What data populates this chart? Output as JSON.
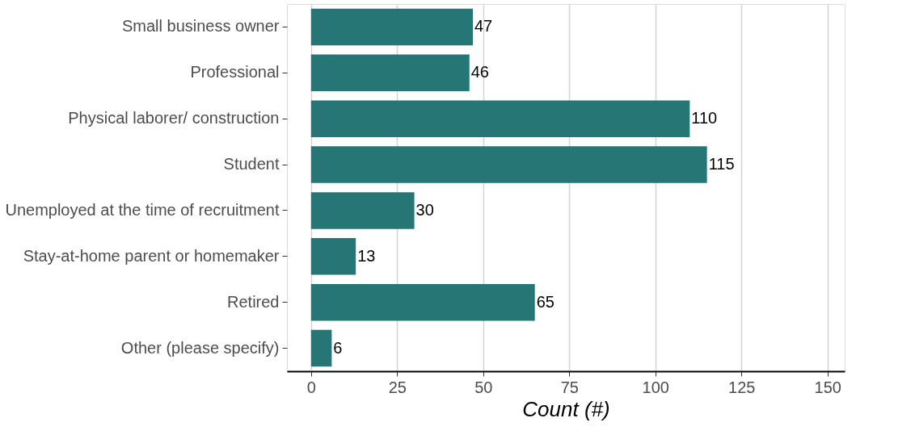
{
  "chart_data": {
    "type": "bar",
    "orientation": "horizontal",
    "xlabel": "Count (#)",
    "categories": [
      "Small business owner",
      "Professional",
      "Physical laborer/ construction",
      "Student",
      "Unemployed at the time of recruitment",
      "Stay-at-home parent or homemaker",
      "Retired",
      "Other (please specify)"
    ],
    "values": [
      47,
      46,
      110,
      115,
      30,
      13,
      65,
      6
    ],
    "color": "#267676",
    "xlim": [
      -7,
      155
    ],
    "xticks": [
      0,
      25,
      50,
      75,
      100,
      125,
      150
    ],
    "grid": "x",
    "data_labels": true
  }
}
